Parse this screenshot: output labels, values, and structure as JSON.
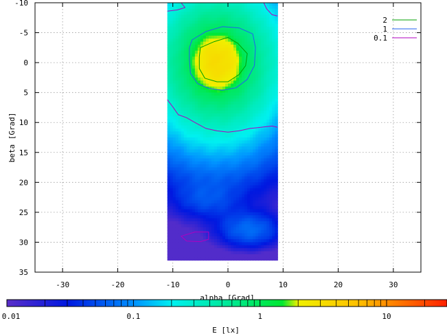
{
  "chart_data": {
    "type": "heatmap",
    "xlabel": "alpha [Grad]",
    "ylabel": "beta [Grad]",
    "colorbar_label": "E [lx]",
    "xlim": [
      -35,
      35
    ],
    "ylim": [
      35,
      -10
    ],
    "x_ticks": [
      -30,
      -20,
      -10,
      0,
      10,
      20,
      30
    ],
    "y_ticks": [
      -10,
      -5,
      0,
      5,
      10,
      15,
      20,
      25,
      30,
      35
    ],
    "grid": true,
    "data_extent": {
      "x": [
        -11,
        9
      ],
      "y": [
        -10,
        33
      ]
    },
    "colorbar": {
      "scale": "log",
      "range": [
        0.01,
        30
      ],
      "ticks": [
        {
          "label": "0.01",
          "value": 0.01
        },
        {
          "label": "0.1",
          "value": 0.1
        },
        {
          "label": "1",
          "value": 1
        },
        {
          "label": "10",
          "value": 10
        }
      ],
      "stops": [
        {
          "value": 0.01,
          "color": "#5a2ec8"
        },
        {
          "value": 0.03,
          "color": "#0018e0"
        },
        {
          "value": 0.1,
          "color": "#0090ff"
        },
        {
          "value": 0.2,
          "color": "#00f0f0"
        },
        {
          "value": 0.6,
          "color": "#00e890"
        },
        {
          "value": 1.5,
          "color": "#00e830"
        },
        {
          "value": 2.0,
          "color": "#f0f000"
        },
        {
          "value": 6,
          "color": "#ffc000"
        },
        {
          "value": 30,
          "color": "#ff2000"
        }
      ]
    },
    "legend": {
      "placement": "top-right",
      "entries": [
        {
          "label": "2",
          "color": "#00a000"
        },
        {
          "label": "1",
          "color": "#2060f0"
        },
        {
          "label": "0.1",
          "color": "#b000c0"
        }
      ]
    },
    "contours": [
      {
        "level": "2",
        "color": "#00a000",
        "points": [
          [
            -5,
            -2.5
          ],
          [
            -2.5,
            -3.5
          ],
          [
            0,
            -4.2
          ],
          [
            1.8,
            -3.2
          ],
          [
            3.5,
            -1.5
          ],
          [
            3.2,
            0.5
          ],
          [
            2,
            2.0
          ],
          [
            0,
            3.2
          ],
          [
            -2,
            3.2
          ],
          [
            -4.2,
            2.6
          ],
          [
            -5.2,
            1.0
          ],
          [
            -5.2,
            -1.0
          ]
        ]
      },
      {
        "level": "1",
        "color": "#2060f0",
        "points": [
          [
            -6.5,
            -3.8
          ],
          [
            -4,
            -5.2
          ],
          [
            -1,
            -6.0
          ],
          [
            2,
            -5.8
          ],
          [
            4.5,
            -4.8
          ],
          [
            5.0,
            -2.5
          ],
          [
            4.8,
            0.5
          ],
          [
            3.5,
            2.8
          ],
          [
            1.5,
            4.2
          ],
          [
            -1,
            4.6
          ],
          [
            -3.5,
            4.3
          ],
          [
            -5.5,
            3.5
          ],
          [
            -6.8,
            1.8
          ],
          [
            -7.0,
            -0.5
          ],
          [
            -7.0,
            -2.5
          ]
        ]
      },
      {
        "level": "0.1",
        "color": "#b000c0",
        "points": [
          [
            -11,
            6.2
          ],
          [
            -10,
            7.4
          ],
          [
            -9,
            8.7
          ],
          [
            -7.5,
            9.2
          ],
          [
            -6,
            10.0
          ],
          [
            -4,
            11.0
          ],
          [
            -2,
            11.4
          ],
          [
            0,
            11.6
          ],
          [
            2,
            11.4
          ],
          [
            4,
            11.0
          ],
          [
            6,
            10.8
          ],
          [
            8,
            10.6
          ],
          [
            9,
            10.8
          ]
        ]
      },
      {
        "level": "0.1",
        "color": "#b000c0",
        "points": [
          [
            -8.5,
            -10
          ],
          [
            -7.8,
            -9.2
          ],
          [
            -9.2,
            -8.8
          ],
          [
            -11,
            -8.6
          ]
        ]
      },
      {
        "level": "0.1",
        "color": "#b000c0",
        "points": [
          [
            6.5,
            -10
          ],
          [
            7.0,
            -9.0
          ],
          [
            8.0,
            -8.0
          ],
          [
            9,
            -7.8
          ]
        ]
      },
      {
        "level": "0.1",
        "color": "#b000c0",
        "closed": true,
        "points": [
          [
            -8.5,
            29.0
          ],
          [
            -6,
            28.3
          ],
          [
            -3.5,
            28.3
          ],
          [
            -3.5,
            29.5
          ],
          [
            -5,
            29.9
          ],
          [
            -7.5,
            29.8
          ]
        ]
      }
    ],
    "intensity_model": {
      "peak": {
        "x": -2,
        "y": 0,
        "value": 3.2
      },
      "secondary": [
        {
          "x": -4,
          "y": 23,
          "value": 0.03
        },
        {
          "x": 4,
          "y": 28,
          "value": 0.06
        }
      ]
    }
  }
}
